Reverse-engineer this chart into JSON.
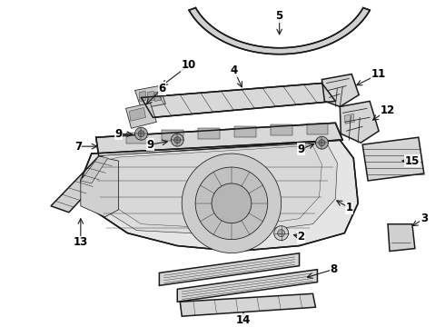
{
  "background_color": "#ffffff",
  "line_color": "#1a1a1a",
  "label_color": "#000000",
  "fig_width": 4.9,
  "fig_height": 3.6,
  "dpi": 100,
  "label_fontsize": 8.5,
  "lw_main": 1.1,
  "lw_thin": 0.55,
  "lw_thick": 1.6
}
